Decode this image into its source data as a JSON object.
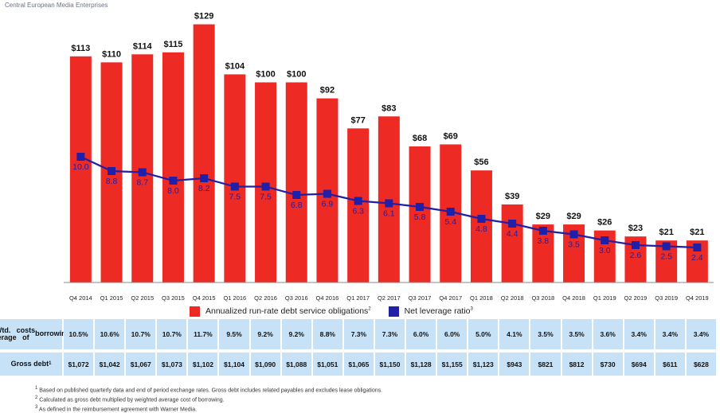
{
  "header": {
    "brand": "Central European Media Enterprises"
  },
  "chart_data": {
    "type": "bar+line",
    "categories": [
      "Q4 2014",
      "Q1 2015",
      "Q2 2015",
      "Q3 2015",
      "Q4 2015",
      "Q1 2016",
      "Q2 2016",
      "Q3 2016",
      "Q4 2016",
      "Q1 2017",
      "Q2 2017",
      "Q3 2017",
      "Q4 2017",
      "Q1 2018",
      "Q2 2018",
      "Q3 2018",
      "Q4 2018",
      "Q1 2019",
      "Q2 2019",
      "Q3 2019",
      "Q4 2019"
    ],
    "series": [
      {
        "name": "Annualized run-rate debt service obligations",
        "name_sup": "2",
        "type": "bar",
        "color": "#ee2a25",
        "values": [
          113,
          110,
          114,
          115,
          129,
          104,
          100,
          100,
          92,
          77,
          83,
          68,
          69,
          56,
          39,
          29,
          29,
          26,
          23,
          21,
          21
        ],
        "labels": [
          "$113",
          "$110",
          "$114",
          "$115",
          "$129",
          "$104",
          "$100",
          "$100",
          "$92",
          "$77",
          "$83",
          "$68",
          "$69",
          "$56",
          "$39",
          "$29",
          "$29",
          "$26",
          "$23",
          "$21",
          "$21"
        ]
      },
      {
        "name": "Net leverage ratio",
        "name_sup": "3",
        "type": "line",
        "color": "#1f1fa8",
        "values": [
          10.0,
          8.8,
          8.7,
          8.0,
          8.2,
          7.5,
          7.5,
          6.8,
          6.9,
          6.3,
          6.1,
          5.8,
          5.4,
          4.8,
          4.4,
          3.8,
          3.5,
          3.0,
          2.6,
          2.5,
          2.4
        ],
        "labels": [
          "10.0",
          "8.8",
          "8.7",
          "8.0",
          "8.2",
          "7.5",
          "7.5",
          "6.8",
          "6.9",
          "6.3",
          "6.1",
          "5.8",
          "5.4",
          "4.8",
          "4.4",
          "3.8",
          "3.5",
          "3.0",
          "2.6",
          "2.5",
          "2.4"
        ]
      }
    ],
    "legend_position": "bottom",
    "grid": false
  },
  "table": {
    "rows": [
      {
        "label_lines": [
          "Wtd. average",
          "costs of",
          "borrowing"
        ],
        "label_sup": "1",
        "values": [
          "10.5%",
          "10.6%",
          "10.7%",
          "10.7%",
          "11.7%",
          "9.5%",
          "9.2%",
          "9.2%",
          "8.8%",
          "7.3%",
          "7.3%",
          "6.0%",
          "6.0%",
          "5.0%",
          "4.1%",
          "3.5%",
          "3.5%",
          "3.6%",
          "3.4%",
          "3.4%",
          "3.4%"
        ]
      },
      {
        "label_lines": [
          "Gross debt"
        ],
        "label_sup": "1",
        "values": [
          "$1,072",
          "$1,042",
          "$1,067",
          "$1,073",
          "$1,102",
          "$1,104",
          "$1,090",
          "$1,088",
          "$1,051",
          "$1,065",
          "$1,150",
          "$1,128",
          "$1,155",
          "$1,123",
          "$943",
          "$821",
          "$812",
          "$730",
          "$694",
          "$611",
          "$628"
        ]
      }
    ]
  },
  "footnotes": [
    {
      "sup": "1",
      "text": "Based on published quarterly data and end of period exchange rates. Gross debt includes related payables and excludes lease obligations."
    },
    {
      "sup": "2",
      "text": "Calculated as gross debt multiplied by weighted average cost of borrowing."
    },
    {
      "sup": "3",
      "text": "As defined in the reimbursement agreement with Warner Media."
    }
  ]
}
